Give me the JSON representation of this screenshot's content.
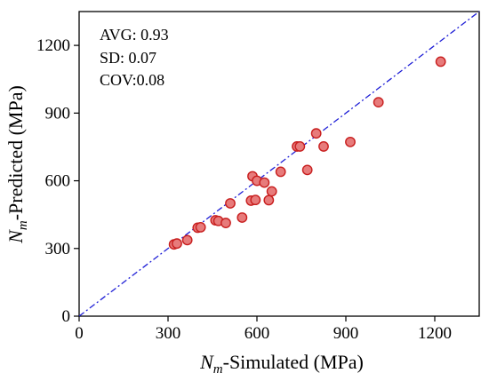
{
  "chart_data": {
    "type": "scatter",
    "xlabel": {
      "main": "N",
      "sub": "m",
      "rest": "-Simulated (MPa)"
    },
    "ylabel": {
      "main": "N",
      "sub": "m",
      "rest": "-Predicted (MPa)"
    },
    "xlim": [
      0,
      1350
    ],
    "ylim": [
      0,
      1350
    ],
    "xticks": [
      0,
      300,
      600,
      900,
      1200
    ],
    "yticks": [
      0,
      300,
      600,
      900,
      1200
    ],
    "annotations": {
      "avg": "AVG: 0.93",
      "sd": "SD: 0.07",
      "cov": "COV:0.08"
    },
    "reference_line": {
      "from": [
        0,
        0
      ],
      "to": [
        1350,
        1350
      ],
      "style": "dash-dot",
      "color": "#1f1fd6"
    },
    "marker": {
      "fill": "#e77b7b",
      "stroke": "#c81e1e"
    },
    "points": [
      [
        320,
        318
      ],
      [
        330,
        322
      ],
      [
        365,
        337
      ],
      [
        400,
        392
      ],
      [
        410,
        394
      ],
      [
        460,
        425
      ],
      [
        470,
        422
      ],
      [
        495,
        413
      ],
      [
        510,
        500
      ],
      [
        550,
        437
      ],
      [
        580,
        512
      ],
      [
        585,
        620
      ],
      [
        595,
        515
      ],
      [
        600,
        600
      ],
      [
        625,
        592
      ],
      [
        640,
        514
      ],
      [
        650,
        553
      ],
      [
        680,
        640
      ],
      [
        735,
        752
      ],
      [
        745,
        752
      ],
      [
        770,
        648
      ],
      [
        800,
        810
      ],
      [
        825,
        752
      ],
      [
        915,
        772
      ],
      [
        1010,
        948
      ],
      [
        1220,
        1128
      ]
    ]
  }
}
